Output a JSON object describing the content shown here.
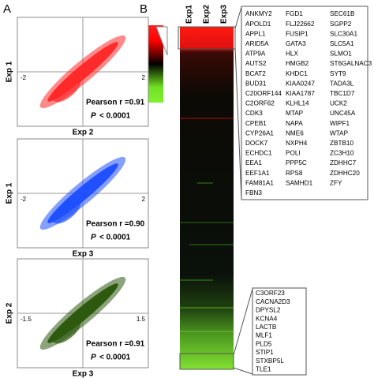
{
  "panel_a": {
    "label": "A",
    "plots": [
      {
        "y_label": "Exp 1",
        "x_label": "Exp 2",
        "tick_left": "-2",
        "tick_right": "2",
        "pearson": "Pearson r =0.91",
        "p_symbol": "P",
        "p_value": "< 0.0001"
      },
      {
        "y_label": "Exp 1",
        "x_label": "Exp 3",
        "tick_left": "-2",
        "tick_right": "2",
        "pearson": "Pearson r =0.90",
        "p_symbol": "P",
        "p_value": "< 0.0001"
      },
      {
        "y_label": "Exp 2",
        "x_label": "Exp 3",
        "tick_left": "-1.5",
        "tick_right": "1.5",
        "pearson": "Pearson r =0.91",
        "p_symbol": "P",
        "p_value": "< 0.0001"
      }
    ]
  },
  "panel_b": {
    "label": "B",
    "columns": [
      "Exp1",
      "Exp2",
      "Exp3"
    ],
    "up_genes": [
      [
        "ANKMY2",
        "APOLD1",
        "APPL1",
        "ARID5A",
        "ATP9A",
        "AUTS2",
        "BCAT2",
        "BUD31",
        "C20ORF144",
        "C2ORF62",
        "CDK3",
        "CPEB1",
        "CYP26A1",
        "DOCK7",
        "ECHDC1",
        "EEA1",
        "EEF1A1",
        "FAM81A1",
        "FBN3"
      ],
      [
        "FGD1",
        "FLJ22662",
        "FUSIP1",
        "GATA3",
        "HLX",
        "HMGB2",
        "KHDC1",
        "KIAA0247",
        "KIAA1787",
        "KLHL14",
        "MTAP",
        "NAPA",
        "NME6",
        "NXPH4",
        "POLI",
        "PPP5C",
        "RPS8",
        "SAMHD1"
      ],
      [
        "SEC61B",
        "SGPP2",
        "SLC30A1",
        "SLC5A1",
        "SLMO1",
        "ST6GALNAC3",
        "SYT9",
        "TADA3L",
        "TBC1D7",
        "UCK2",
        "UNC45A",
        "WIPF1",
        "WTAP",
        "ZBTB10",
        "ZC3H10",
        "ZDHHC7",
        "ZDHHC20",
        "ZFY"
      ]
    ],
    "down_genes": [
      "C3ORF23",
      "CACNA2D3",
      "DPYSL2",
      "KCNA4",
      "LACTB",
      "MLF1",
      "PLD5",
      "STIP1",
      "STXBP5L",
      "TLE1"
    ]
  }
}
